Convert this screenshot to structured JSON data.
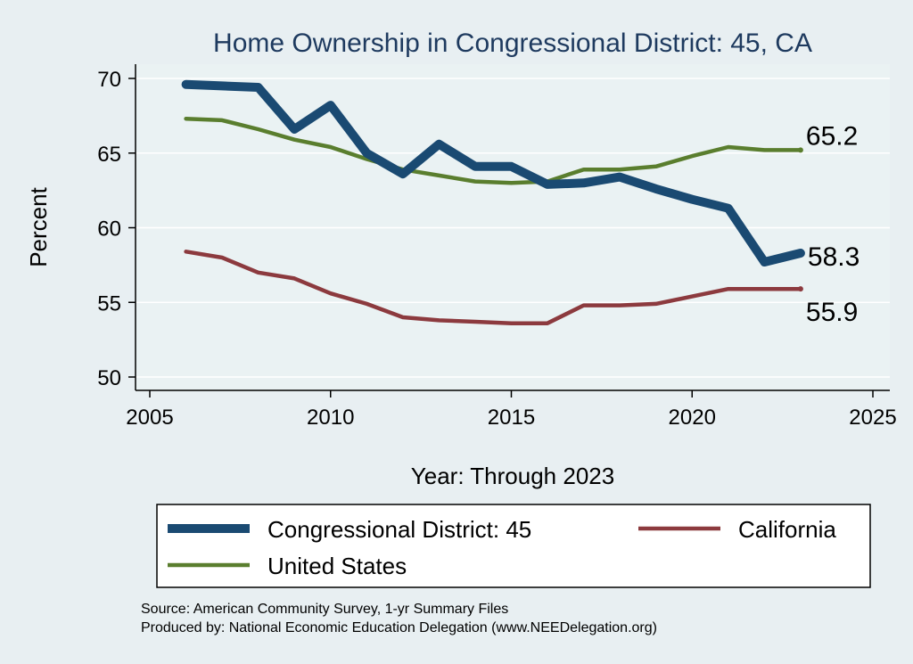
{
  "chart_data": {
    "type": "line",
    "title": "Home Ownership in Congressional District:  45, CA",
    "xlabel": "Year: Through 2023",
    "ylabel": "Percent",
    "xlim": [
      2005,
      2025
    ],
    "ylim": [
      50,
      70
    ],
    "x_ticks": [
      2005,
      2010,
      2015,
      2020,
      2025
    ],
    "y_ticks": [
      50,
      55,
      60,
      65,
      70
    ],
    "grid": true,
    "legend_position": "bottom",
    "x": [
      2006,
      2007,
      2008,
      2009,
      2010,
      2011,
      2012,
      2013,
      2014,
      2015,
      2016,
      2017,
      2018,
      2019,
      2020,
      2021,
      2022,
      2023
    ],
    "series": [
      {
        "name": "Congressional District:  45",
        "color": "#1a4a72",
        "values": [
          69.6,
          69.5,
          69.4,
          66.6,
          68.2,
          65.0,
          63.6,
          65.6,
          64.1,
          64.1,
          62.9,
          63.0,
          63.4,
          62.6,
          61.9,
          61.3,
          57.7,
          58.3
        ],
        "end_label": "58.3"
      },
      {
        "name": "California",
        "color": "#8c3a3e",
        "values": [
          58.4,
          58.0,
          57.0,
          56.6,
          55.6,
          54.9,
          54.0,
          53.8,
          53.7,
          53.6,
          53.6,
          54.8,
          54.8,
          54.9,
          55.4,
          55.9,
          55.9,
          55.9
        ],
        "end_label": "55.9"
      },
      {
        "name": "United States",
        "color": "#5a7e2e",
        "values": [
          67.3,
          67.2,
          66.6,
          65.9,
          65.4,
          64.6,
          63.9,
          63.5,
          63.1,
          63.0,
          63.1,
          63.9,
          63.9,
          64.1,
          64.8,
          65.4,
          65.2,
          65.2
        ],
        "end_label": "65.2"
      }
    ],
    "source_lines": [
      "Source: American Community Survey, 1-yr Summary Files",
      "Produced by: National Economic Education Delegation (www.NEEDelegation.org)"
    ]
  }
}
